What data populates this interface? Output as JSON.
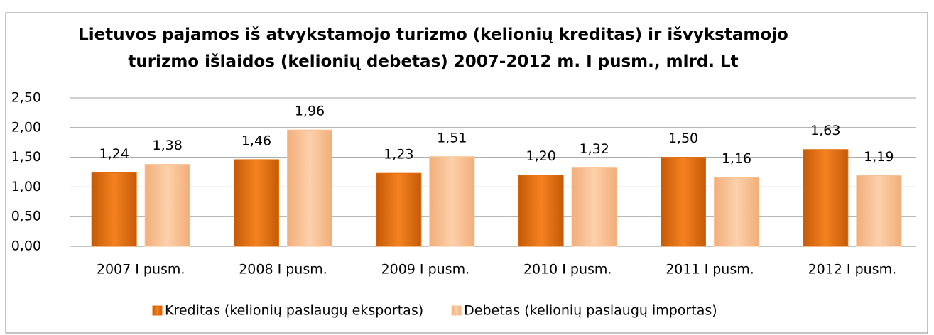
{
  "chart_data": {
    "type": "bar",
    "title": "Lietuvos pajamos iš atvykstamojo turizmo (kelionių kreditas) ir išvykstamojo turizmo išlaidos (kelionių debetas) 2007-2012 m. I pusm., mlrd. Lt",
    "categories": [
      "2007 I pusm.",
      "2008 I pusm.",
      "2009 I pusm.",
      "2010 I pusm.",
      "2011 I pusm.",
      "2012 I pusm."
    ],
    "series": [
      {
        "name": "Kreditas (kelionių paslaugų eksportas)",
        "color": "#e36c0a",
        "values": [
          1.24,
          1.46,
          1.23,
          1.2,
          1.5,
          1.63
        ],
        "value_labels": [
          "1,24",
          "1,46",
          "1,23",
          "1,20",
          "1,50",
          "1,63"
        ]
      },
      {
        "name": "Debetas (kelionių paslaugų importas)",
        "color": "#fac090",
        "values": [
          1.38,
          1.96,
          1.51,
          1.32,
          1.16,
          1.19
        ],
        "value_labels": [
          "1,38",
          "1,96",
          "1,51",
          "1,32",
          "1,16",
          "1,19"
        ]
      }
    ],
    "ylim": [
      0,
      2.5
    ],
    "yticks": [
      {
        "value": 0,
        "label": "0,00"
      },
      {
        "value": 0.5,
        "label": "0,50"
      },
      {
        "value": 1,
        "label": "1,00"
      },
      {
        "value": 1.5,
        "label": "1,50"
      },
      {
        "value": 2,
        "label": "2,00"
      },
      {
        "value": 2.5,
        "label": "2,50"
      }
    ],
    "grid": true,
    "legend": "bottom"
  }
}
